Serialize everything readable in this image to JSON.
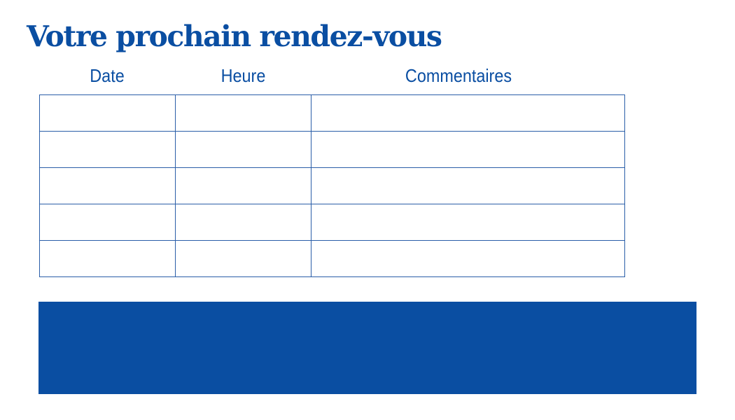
{
  "title": "Votre prochain rendez-vous",
  "table": {
    "headers": [
      "Date",
      "Heure",
      "Commentaires"
    ],
    "rows": [
      [
        "",
        "",
        ""
      ],
      [
        "",
        "",
        ""
      ],
      [
        "",
        "",
        ""
      ],
      [
        "",
        "",
        ""
      ],
      [
        "",
        "",
        ""
      ]
    ]
  },
  "colors": {
    "brand_blue": "#0a4ea2"
  }
}
